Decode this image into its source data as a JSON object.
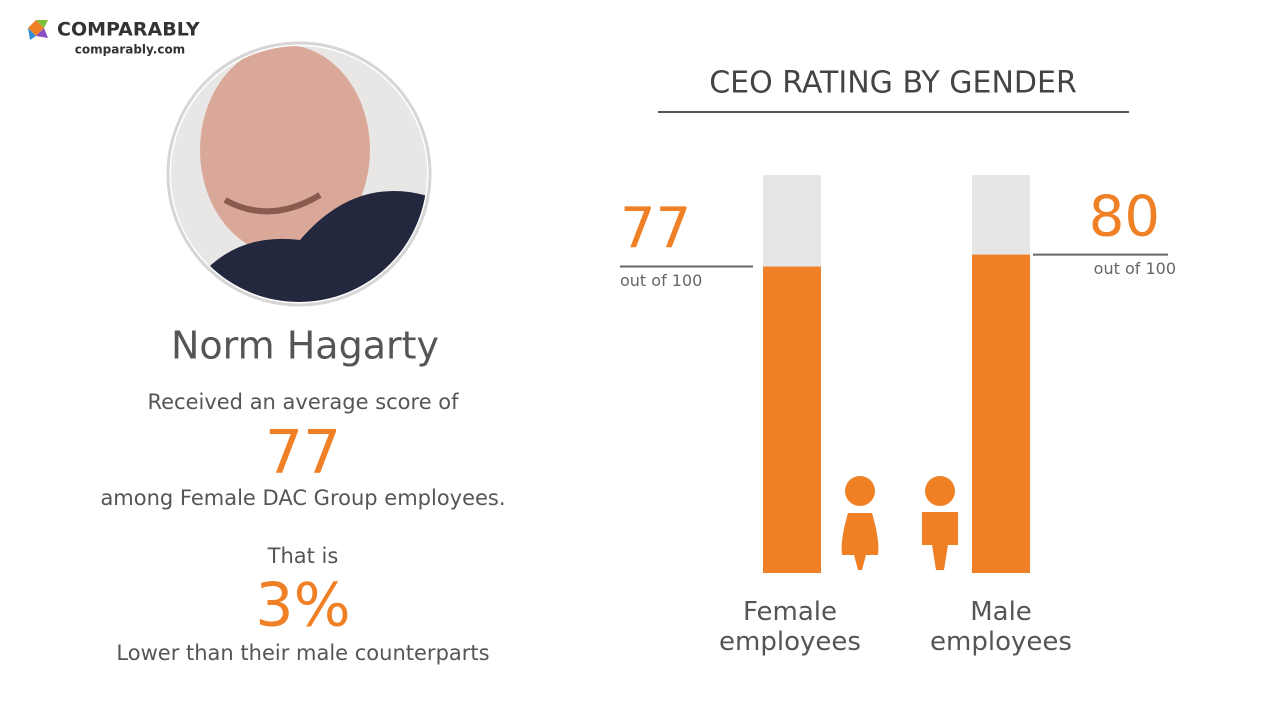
{
  "brand": {
    "name": "COMPARABLY",
    "url": "comparably.com"
  },
  "profile": {
    "name": "Norm Hagarty",
    "intro": "Received an average score of",
    "score": "77",
    "group": "among Female DAC Group employees.",
    "lead": "That is",
    "difference": "3%",
    "comparison": "Lower than their male counterparts"
  },
  "chart_data": {
    "type": "bar",
    "title": "CEO RATING BY GENDER",
    "categories": [
      "Female employees",
      "Male employees"
    ],
    "values": [
      77,
      80
    ],
    "value_notes": [
      "out of 100",
      "out of 100"
    ],
    "ylim": [
      0,
      100
    ],
    "color": "#f08025",
    "track_color": "#e6e6e6"
  }
}
